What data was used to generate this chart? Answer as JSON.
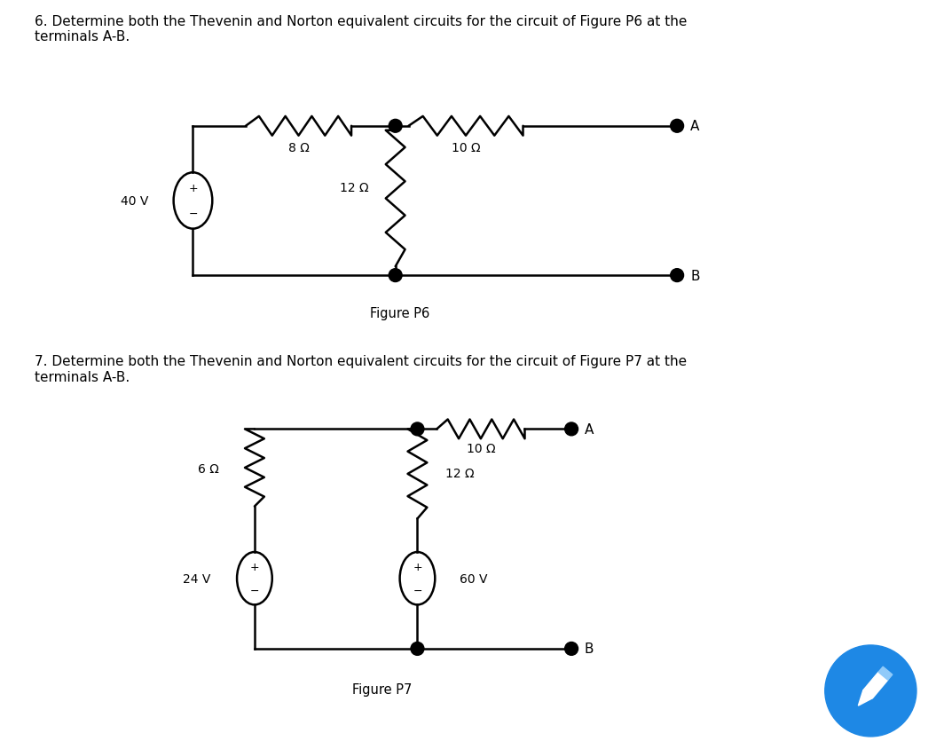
{
  "bg_color": "#ffffff",
  "text_color": "#000000",
  "line_color": "#000000",
  "line_width": 1.8,
  "title1": "6. Determine both the Thevenin and Norton equivalent circuits for the circuit of Figure P6 at the\nterminals A-B.",
  "title2": "7. Determine both the Thevenin and Norton equivalent circuits for the circuit of Figure P7 at the\nterminals A-B.",
  "fig6_caption": "Figure P6",
  "fig7_caption": "Figure P7"
}
